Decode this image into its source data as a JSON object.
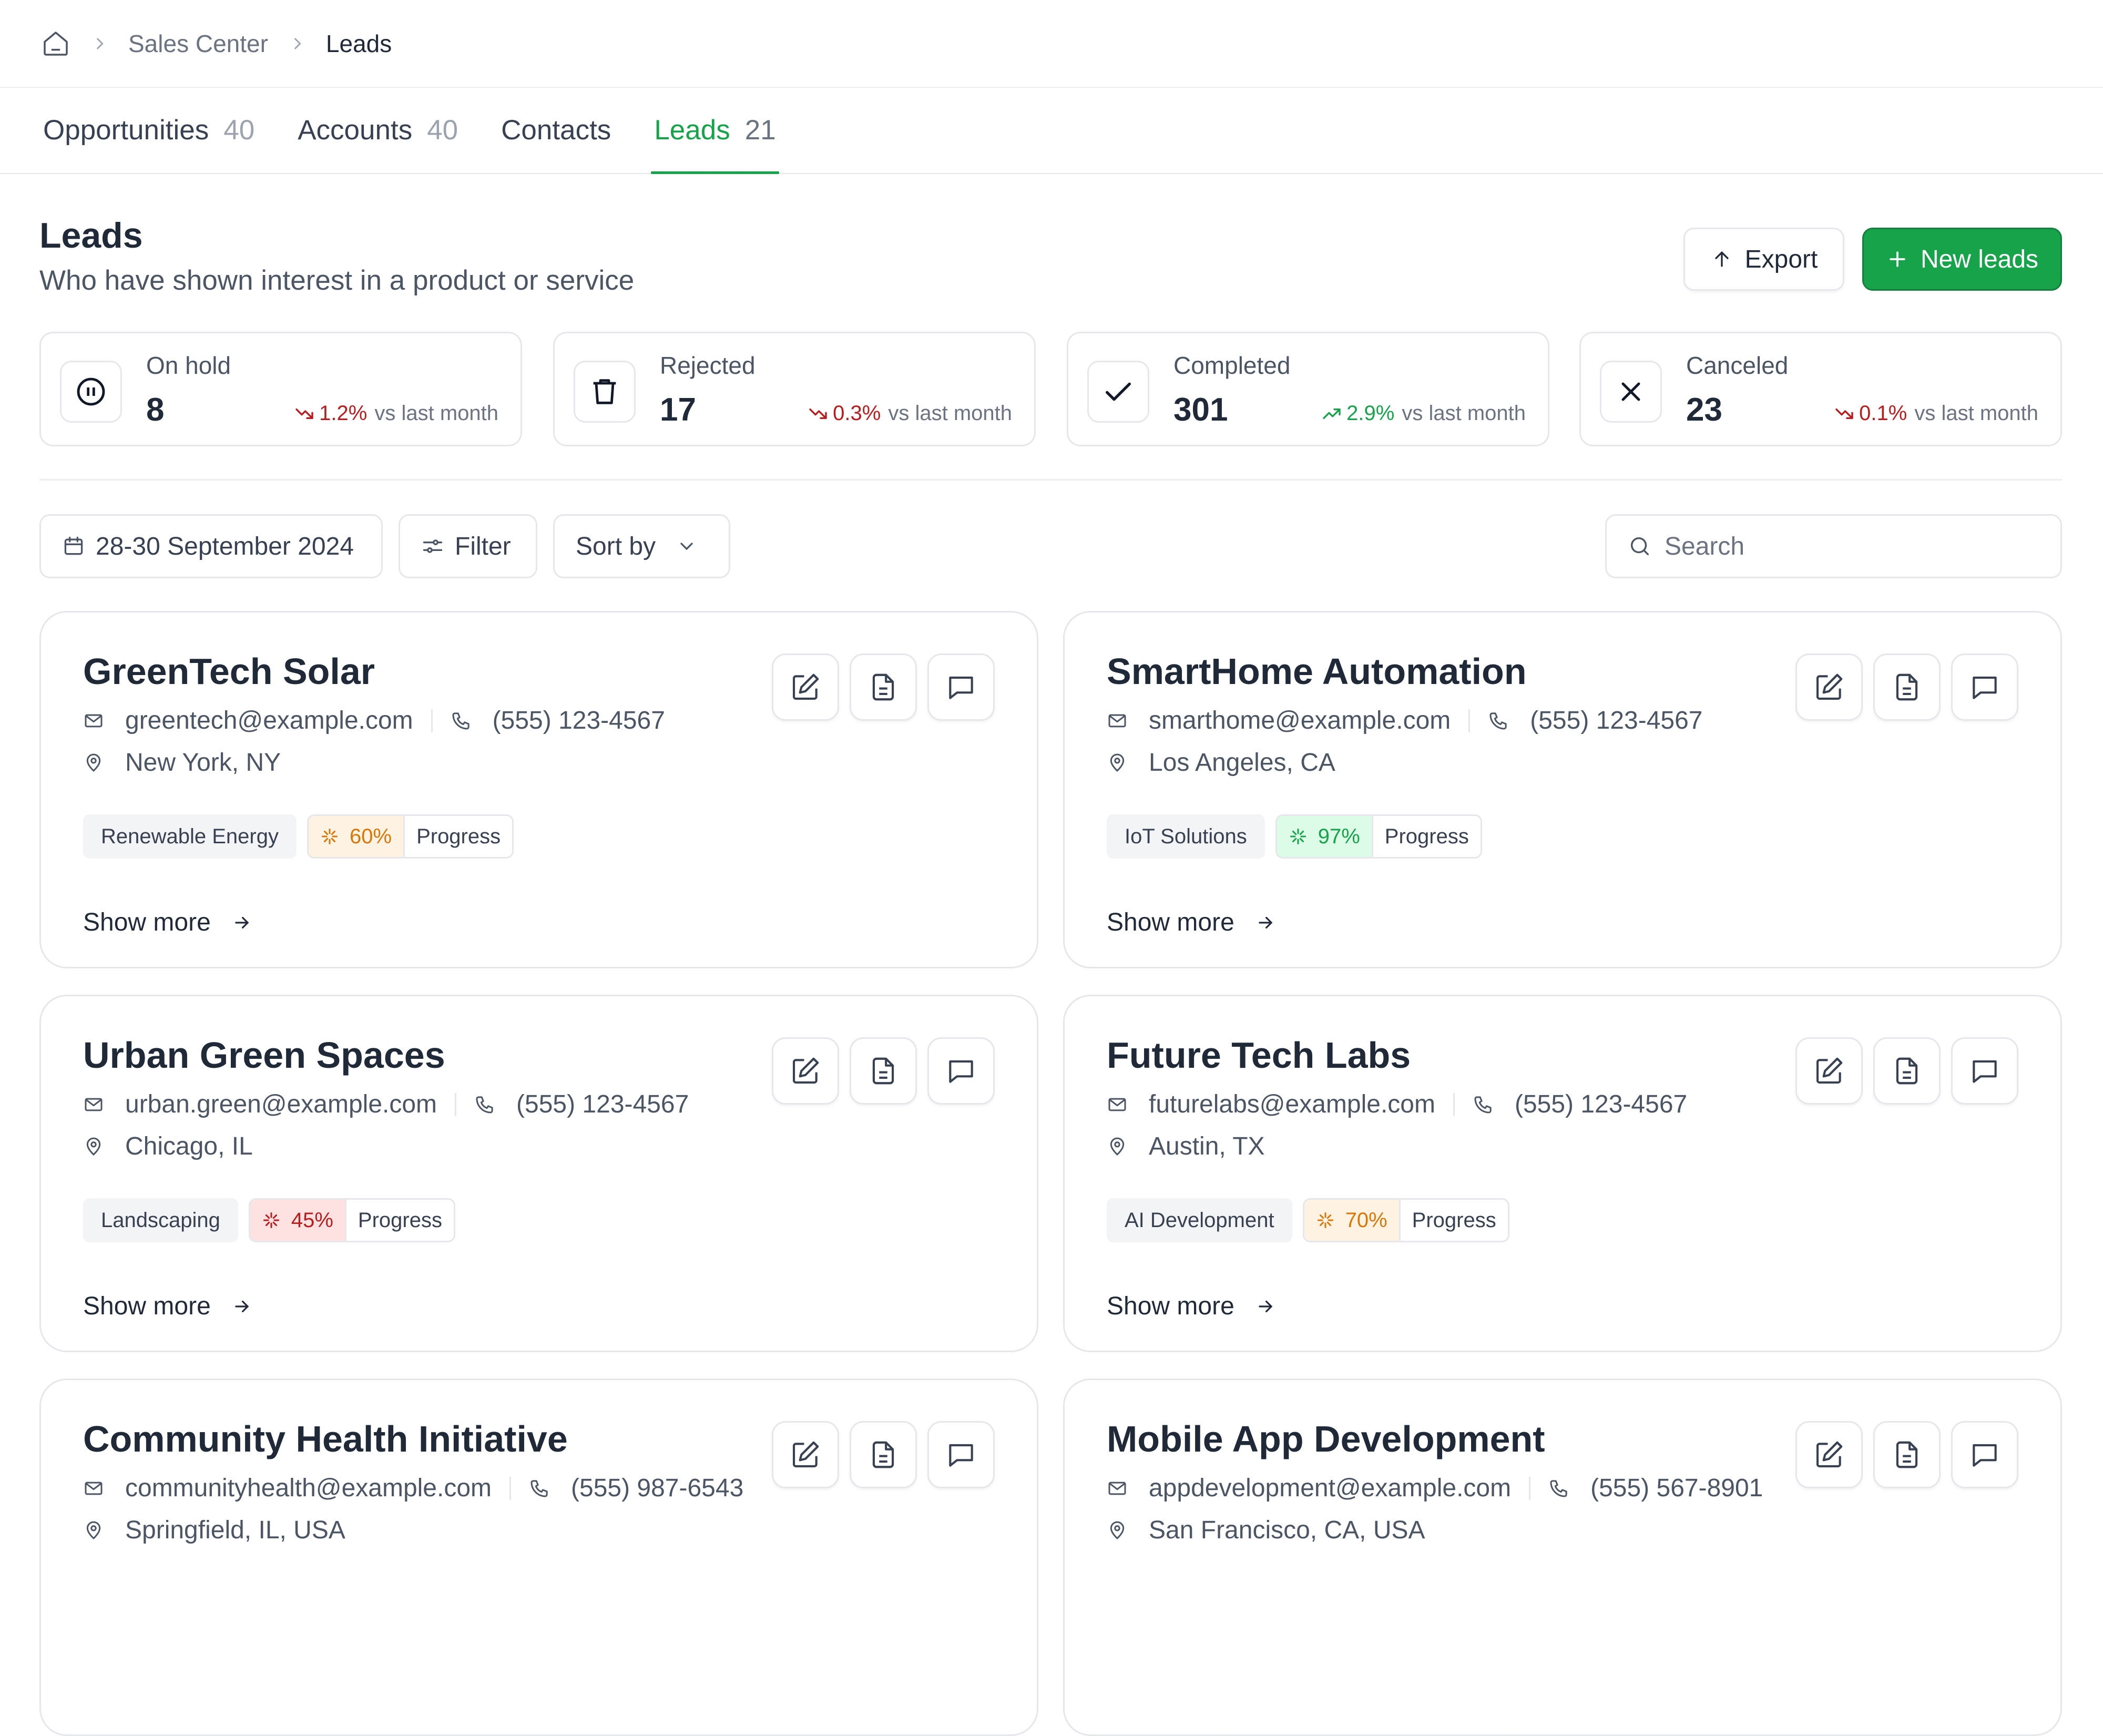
{
  "breadcrumb": {
    "items": [
      "Sales Center",
      "Leads"
    ]
  },
  "tabs": [
    {
      "label": "Opportunities",
      "count": "40"
    },
    {
      "label": "Accounts",
      "count": "40"
    },
    {
      "label": "Contacts",
      "count": ""
    },
    {
      "label": "Leads",
      "count": "21"
    }
  ],
  "header": {
    "title": "Leads",
    "subtitle": "Who have shown interest in a product or service",
    "export_label": "Export",
    "new_label": "New leads"
  },
  "stats": [
    {
      "label": "On hold",
      "value": "8",
      "trend": "down",
      "pct": "1.2%",
      "suffix": "vs last month",
      "icon": "pause-icon"
    },
    {
      "label": "Rejected",
      "value": "17",
      "trend": "down",
      "pct": "0.3%",
      "suffix": "vs last month",
      "icon": "trash-icon"
    },
    {
      "label": "Completed",
      "value": "301",
      "trend": "up",
      "pct": "2.9%",
      "suffix": "vs last month",
      "icon": "check-icon"
    },
    {
      "label": "Canceled",
      "value": "23",
      "trend": "down",
      "pct": "0.1%",
      "suffix": "vs last month",
      "icon": "x-icon"
    }
  ],
  "toolbar": {
    "date_range": "28-30 September 2024",
    "filter_label": "Filter",
    "sort_label": "Sort by",
    "search_placeholder": "Search"
  },
  "cards": [
    {
      "name": "GreenTech Solar",
      "email": "greentech@example.com",
      "phone": "(555) 123-4567",
      "location": "New York, NY",
      "tag": "Renewable Energy",
      "progress": "60%",
      "progress_label": "Progress",
      "status": "warning",
      "show_more": "Show more"
    },
    {
      "name": "SmartHome Automation",
      "email": "smarthome@example.com",
      "phone": "(555) 123-4567",
      "location": "Los Angeles, CA",
      "tag": "IoT Solutions",
      "progress": "97%",
      "progress_label": "Progress",
      "status": "success",
      "show_more": "Show more"
    },
    {
      "name": "Urban Green Spaces",
      "email": "urban.green@example.com",
      "phone": "(555) 123-4567",
      "location": "Chicago, IL",
      "tag": "Landscaping",
      "progress": "45%",
      "progress_label": "Progress",
      "status": "danger",
      "show_more": "Show more"
    },
    {
      "name": "Future Tech Labs",
      "email": "futurelabs@example.com",
      "phone": "(555) 123-4567",
      "location": "Austin, TX",
      "tag": "AI Development",
      "progress": "70%",
      "progress_label": "Progress",
      "status": "warning",
      "show_more": "Show more"
    },
    {
      "name": "Community Health Initiative",
      "email": "communityhealth@example.com",
      "phone": "(555) 987-6543",
      "location": "Springfield, IL, USA",
      "tag": "",
      "progress": "",
      "progress_label": "",
      "status": "",
      "show_more": ""
    },
    {
      "name": "Mobile App Development",
      "email": "appdevelopment@example.com",
      "phone": "(555) 567-8901",
      "location": "San Francisco, CA, USA",
      "tag": "",
      "progress": "",
      "progress_label": "",
      "status": "",
      "show_more": ""
    }
  ],
  "colors": {
    "accent": "#16a34a",
    "warning_bg": "#fef3e2",
    "warning_fg": "#d97706",
    "success_bg": "#dcfce7",
    "success_fg": "#16a34a",
    "danger_bg": "#fee2e2",
    "danger_fg": "#b91c1c"
  }
}
